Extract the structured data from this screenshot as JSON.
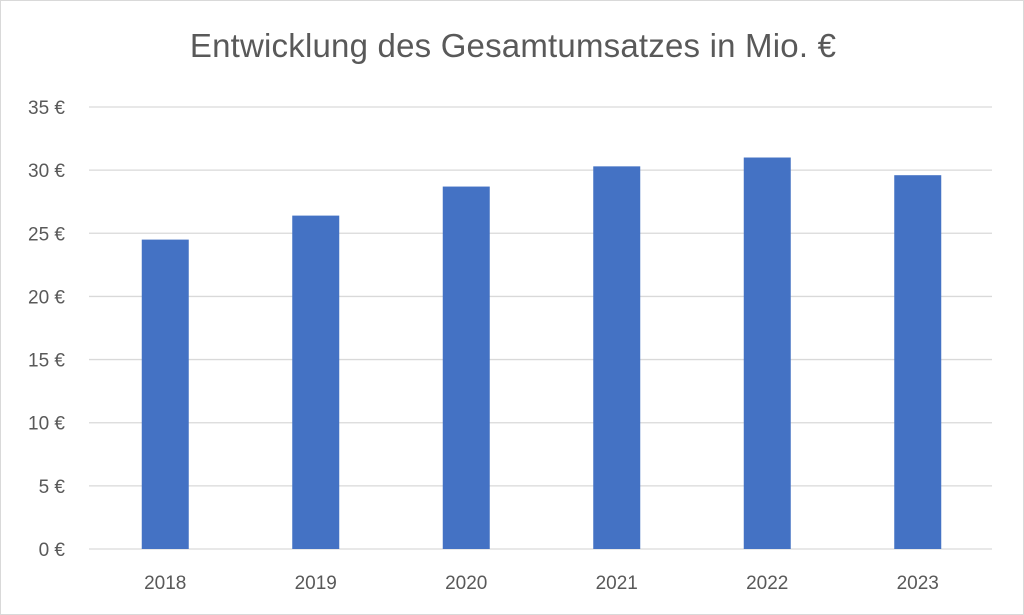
{
  "chart_data": {
    "type": "bar",
    "title": "Entwicklung des Gesamtumsatzes in Mio. €",
    "xlabel": "",
    "ylabel": "",
    "categories": [
      "2018",
      "2019",
      "2020",
      "2021",
      "2022",
      "2023"
    ],
    "values": [
      24.5,
      26.4,
      28.7,
      30.3,
      31.0,
      29.6
    ],
    "ylim": [
      0,
      35
    ],
    "yticks": [
      0,
      5,
      10,
      15,
      20,
      25,
      30,
      35
    ],
    "ytick_labels": [
      "0 €",
      "5 €",
      "10 €",
      "15 €",
      "20 €",
      "25 €",
      "30 €",
      "35 €"
    ],
    "grid": "horizontal",
    "legend": "none",
    "bar_color": "#4472c4",
    "gridline_color": "#d9d9d9"
  }
}
